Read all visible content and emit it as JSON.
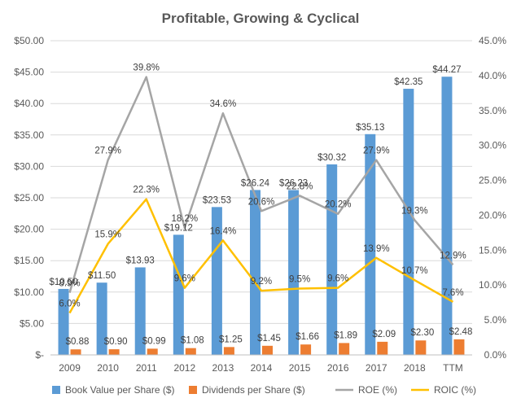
{
  "chart_data": {
    "type": "bar",
    "title": "Profitable, Growing & Cyclical",
    "categories": [
      "2009",
      "2010",
      "2011",
      "2012",
      "2013",
      "2014",
      "2015",
      "2016",
      "2017",
      "2018",
      "TTM"
    ],
    "series": [
      {
        "name": "Book Value per Share ($)",
        "type": "bar",
        "axis": "left",
        "color": "#5B9BD5",
        "values": [
          10.5,
          11.5,
          13.93,
          19.12,
          23.53,
          26.24,
          26.23,
          30.32,
          35.13,
          42.35,
          44.27
        ],
        "labels": [
          "$10.50",
          "$11.50",
          "$13.93",
          "$19.12",
          "$23.53",
          "$26.24",
          "$26.23",
          "$30.32",
          "$35.13",
          "$42.35",
          "$44.27"
        ]
      },
      {
        "name": "Dividends per Share ($)",
        "type": "bar",
        "axis": "left",
        "color": "#ED7D31",
        "values": [
          0.88,
          0.9,
          0.99,
          1.08,
          1.25,
          1.45,
          1.66,
          1.89,
          2.09,
          2.3,
          2.48
        ],
        "labels": [
          "$0.88",
          "$0.90",
          "$0.99",
          "$1.08",
          "$1.25",
          "$1.45",
          "$1.66",
          "$1.89",
          "$2.09",
          "$2.30",
          "$2.48"
        ]
      },
      {
        "name": "ROE (%)",
        "type": "line",
        "axis": "right",
        "color": "#A5A5A5",
        "values": [
          8.9,
          27.9,
          39.8,
          18.2,
          34.6,
          20.6,
          22.8,
          20.2,
          27.9,
          19.3,
          12.9
        ],
        "labels": [
          "8.9%",
          "27.9%",
          "39.8%",
          "18.2%",
          "34.6%",
          "20.6%",
          "22.8%",
          "20.2%",
          "27.9%",
          "19.3%",
          "12.9%"
        ]
      },
      {
        "name": "ROIC (%)",
        "type": "line",
        "axis": "right",
        "color": "#FFC000",
        "values": [
          6.0,
          15.9,
          22.3,
          9.6,
          16.4,
          9.2,
          9.5,
          9.6,
          13.9,
          10.7,
          7.6
        ],
        "labels": [
          "6.0%",
          "15.9%",
          "22.3%",
          "9.6%",
          "16.4%",
          "9.2%",
          "9.5%",
          "9.6%",
          "13.9%",
          "10.7%",
          "7.6%"
        ]
      }
    ],
    "y_left": {
      "ylim": [
        0,
        50
      ],
      "ticks": [
        0,
        5,
        10,
        15,
        20,
        25,
        30,
        35,
        40,
        45,
        50
      ],
      "tick_labels": [
        "$-",
        "$5.00",
        "$10.00",
        "$15.00",
        "$20.00",
        "$25.00",
        "$30.00",
        "$35.00",
        "$40.00",
        "$45.00",
        "$50.00"
      ]
    },
    "y_right": {
      "ylim": [
        0,
        45
      ],
      "ticks": [
        0,
        5,
        10,
        15,
        20,
        25,
        30,
        35,
        40,
        45
      ],
      "tick_labels": [
        "0.0%",
        "5.0%",
        "10.0%",
        "15.0%",
        "20.0%",
        "25.0%",
        "30.0%",
        "35.0%",
        "40.0%",
        "45.0%"
      ]
    },
    "xlabel": "",
    "ylabel": "",
    "grid": true,
    "legend_position": "bottom"
  }
}
